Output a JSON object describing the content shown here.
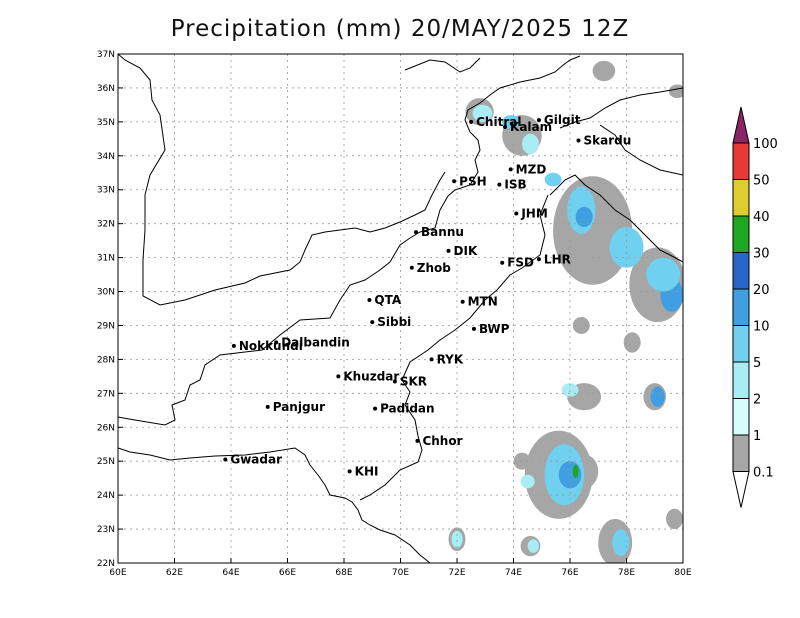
{
  "title": "Precipitation (mm) 20/MAY/2025 12Z",
  "map": {
    "lon_range": [
      60,
      80
    ],
    "lat_range": [
      22,
      37
    ],
    "x_ticks": [
      "60E",
      "62E",
      "64E",
      "66E",
      "68E",
      "70E",
      "72E",
      "74E",
      "76E",
      "78E",
      "80E"
    ],
    "y_ticks": [
      "22N",
      "23N",
      "24N",
      "25N",
      "26N",
      "27N",
      "28N",
      "29N",
      "30N",
      "31N",
      "32N",
      "33N",
      "34N",
      "35N",
      "36N",
      "37N"
    ],
    "gridlines": true
  },
  "cities": [
    {
      "name": "Chitral",
      "lon": 72.5,
      "lat": 35.0
    },
    {
      "name": "Gilgit",
      "lon": 74.9,
      "lat": 35.05
    },
    {
      "name": "Kalam",
      "lon": 73.7,
      "lat": 34.85
    },
    {
      "name": "Skardu",
      "lon": 76.3,
      "lat": 34.45
    },
    {
      "name": "MZD",
      "lon": 73.9,
      "lat": 33.6
    },
    {
      "name": "PSH",
      "lon": 71.9,
      "lat": 33.25
    },
    {
      "name": "ISB",
      "lon": 73.5,
      "lat": 33.15
    },
    {
      "name": "JHM",
      "lon": 74.1,
      "lat": 32.3
    },
    {
      "name": "Bannu",
      "lon": 70.55,
      "lat": 31.75
    },
    {
      "name": "DIK",
      "lon": 71.7,
      "lat": 31.2
    },
    {
      "name": "FSD",
      "lon": 73.6,
      "lat": 30.85
    },
    {
      "name": "LHR",
      "lon": 74.9,
      "lat": 30.95
    },
    {
      "name": "Zhob",
      "lon": 70.4,
      "lat": 30.7
    },
    {
      "name": "QTA",
      "lon": 68.9,
      "lat": 29.75
    },
    {
      "name": "MTN",
      "lon": 72.2,
      "lat": 29.7
    },
    {
      "name": "Sibbi",
      "lon": 69.0,
      "lat": 29.1
    },
    {
      "name": "BWP",
      "lon": 72.6,
      "lat": 28.9
    },
    {
      "name": "Dalbandin",
      "lon": 65.6,
      "lat": 28.5
    },
    {
      "name": "Nokkundi",
      "lon": 64.1,
      "lat": 28.4
    },
    {
      "name": "RYK",
      "lon": 71.1,
      "lat": 28.0
    },
    {
      "name": "SKR",
      "lon": 69.8,
      "lat": 27.35
    },
    {
      "name": "Khuzdar",
      "lon": 67.8,
      "lat": 27.5
    },
    {
      "name": "Panjgur",
      "lon": 65.3,
      "lat": 26.6
    },
    {
      "name": "Padidan",
      "lon": 69.1,
      "lat": 26.55
    },
    {
      "name": "Chhor",
      "lon": 70.6,
      "lat": 25.6
    },
    {
      "name": "KHI",
      "lon": 68.2,
      "lat": 24.7
    },
    {
      "name": "Gwadar",
      "lon": 63.8,
      "lat": 25.05
    }
  ],
  "colorbar": {
    "labels": [
      "0.1",
      "1",
      "2",
      "5",
      "10",
      "20",
      "30",
      "40",
      "50",
      "100"
    ],
    "colors": [
      "#a6a6a6",
      "#d6fcfc",
      "#a8ecf4",
      "#6fd0f0",
      "#3f9fe0",
      "#2a66c9",
      "#1fa81f",
      "#dfcc2e",
      "#e63a36",
      "#8a2466"
    ]
  },
  "precip_areas": [
    {
      "level": 2,
      "lon": 72.9,
      "lat": 35.25,
      "rlon": 0.35,
      "rlat": 0.25
    },
    {
      "level": 3,
      "lon": 73.9,
      "lat": 35.0,
      "rlon": 0.3,
      "rlat": 0.2
    },
    {
      "level": 2,
      "lon": 74.6,
      "lat": 34.35,
      "rlon": 0.3,
      "rlat": 0.3
    },
    {
      "level": 3,
      "lon": 75.4,
      "lat": 33.3,
      "rlon": 0.3,
      "rlat": 0.2
    },
    {
      "level": 3,
      "lon": 76.4,
      "lat": 32.4,
      "rlon": 0.5,
      "rlat": 0.7
    },
    {
      "level": 4,
      "lon": 76.5,
      "lat": 32.2,
      "rlon": 0.3,
      "rlat": 0.3
    },
    {
      "level": 3,
      "lon": 78.0,
      "lat": 31.3,
      "rlon": 0.6,
      "rlat": 0.6
    },
    {
      "level": 4,
      "lon": 79.6,
      "lat": 29.9,
      "rlon": 0.4,
      "rlat": 0.5
    },
    {
      "level": 3,
      "lon": 79.3,
      "lat": 30.5,
      "rlon": 0.6,
      "rlat": 0.5
    },
    {
      "level": 2,
      "lon": 76.0,
      "lat": 27.1,
      "rlon": 0.3,
      "rlat": 0.2
    },
    {
      "level": 4,
      "lon": 79.1,
      "lat": 26.9,
      "rlon": 0.25,
      "rlat": 0.3
    },
    {
      "level": 3,
      "lon": 75.8,
      "lat": 24.6,
      "rlon": 0.7,
      "rlat": 0.9
    },
    {
      "level": 4,
      "lon": 76.0,
      "lat": 24.6,
      "rlon": 0.4,
      "rlat": 0.4
    },
    {
      "level": 6,
      "lon": 76.2,
      "lat": 24.7,
      "rlon": 0.1,
      "rlat": 0.2
    },
    {
      "level": 2,
      "lon": 74.5,
      "lat": 24.4,
      "rlon": 0.25,
      "rlat": 0.2
    },
    {
      "level": 3,
      "lon": 77.8,
      "lat": 22.6,
      "rlon": 0.3,
      "rlat": 0.4
    },
    {
      "level": 2,
      "lon": 72.0,
      "lat": 22.7,
      "rlon": 0.2,
      "rlat": 0.25
    },
    {
      "level": 2,
      "lon": 74.7,
      "lat": 22.5,
      "rlon": 0.2,
      "rlat": 0.2
    }
  ],
  "gray_areas": [
    {
      "lon": 77.2,
      "lat": 36.5,
      "rlon": 0.4,
      "rlat": 0.3
    },
    {
      "lon": 79.8,
      "lat": 35.9,
      "rlon": 0.3,
      "rlat": 0.2
    },
    {
      "lon": 72.8,
      "lat": 35.3,
      "rlon": 0.5,
      "rlat": 0.4
    },
    {
      "lon": 74.3,
      "lat": 34.6,
      "rlon": 0.7,
      "rlat": 0.6
    },
    {
      "lon": 76.8,
      "lat": 31.8,
      "rlon": 1.4,
      "rlat": 1.6
    },
    {
      "lon": 79.1,
      "lat": 30.2,
      "rlon": 1.0,
      "rlat": 1.1
    },
    {
      "lon": 76.4,
      "lat": 29.0,
      "rlon": 0.3,
      "rlat": 0.25
    },
    {
      "lon": 78.2,
      "lat": 28.5,
      "rlon": 0.3,
      "rlat": 0.3
    },
    {
      "lon": 76.5,
      "lat": 26.9,
      "rlon": 0.6,
      "rlat": 0.4
    },
    {
      "lon": 79.0,
      "lat": 26.9,
      "rlon": 0.4,
      "rlat": 0.4
    },
    {
      "lon": 75.6,
      "lat": 24.6,
      "rlon": 1.2,
      "rlat": 1.3
    },
    {
      "lon": 74.3,
      "lat": 25.0,
      "rlon": 0.3,
      "rlat": 0.25
    },
    {
      "lon": 77.6,
      "lat": 22.6,
      "rlon": 0.6,
      "rlat": 0.7
    },
    {
      "lon": 79.7,
      "lat": 23.3,
      "rlon": 0.3,
      "rlat": 0.3
    },
    {
      "lon": 72.0,
      "lat": 22.7,
      "rlon": 0.3,
      "rlat": 0.35
    },
    {
      "lon": 74.6,
      "lat": 22.5,
      "rlon": 0.35,
      "rlat": 0.3
    },
    {
      "lon": 76.5,
      "lat": 24.7,
      "rlon": 0.5,
      "rlat": 0.5
    }
  ]
}
